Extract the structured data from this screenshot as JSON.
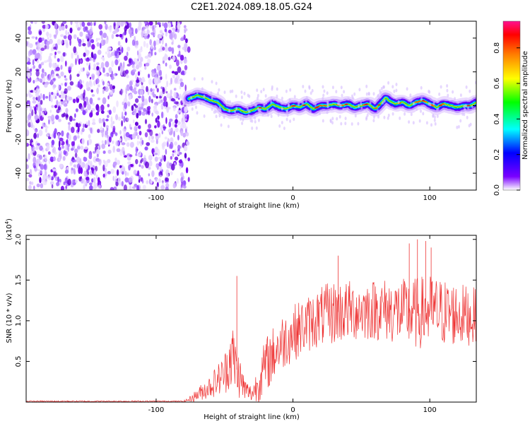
{
  "title": "C2E1.2024.089.18.05.G24",
  "chart_data": [
    {
      "type": "heatmap",
      "name": "spectrogram",
      "xlabel": "Height of straight line (km)",
      "ylabel": "Frequency (Hz)",
      "xlim": [
        -195,
        134
      ],
      "ylim": [
        -50,
        50
      ],
      "xticks": [
        -100,
        0,
        100
      ],
      "xtick_labels": [
        "-100",
        "0",
        "100"
      ],
      "yticks": [
        -40,
        -20,
        0,
        20,
        40
      ],
      "ytick_labels": [
        "-40",
        "-20",
        "0",
        "20",
        "40"
      ],
      "noise_region_x": [
        -195,
        -76
      ],
      "trace": {
        "x": [
          -76,
          -70,
          -65,
          -60,
          -55,
          -50,
          -45,
          -40,
          -35,
          -30,
          -25,
          -20,
          -15,
          -10,
          -5,
          0,
          5,
          10,
          15,
          20,
          25,
          30,
          35,
          40,
          45,
          50,
          55,
          60,
          65,
          68,
          70,
          75,
          80,
          85,
          90,
          95,
          100,
          105,
          110,
          115,
          120,
          125,
          130,
          134
        ],
        "frequency_hz": [
          4,
          6,
          5,
          3,
          2,
          -2,
          -3,
          -2,
          -4,
          -3,
          -1,
          -2,
          1,
          -1,
          -2,
          0,
          -1,
          1,
          -2,
          0,
          0,
          1,
          0,
          1,
          -1,
          0,
          1,
          -2,
          2,
          5,
          3,
          1,
          2,
          0,
          2,
          3,
          1,
          -1,
          1,
          0,
          -1,
          0,
          0,
          2
        ]
      },
      "colorbar": {
        "label": "Normalized spectral amplitude",
        "range": [
          0,
          0.95
        ],
        "ticks": [
          0.0,
          0.2,
          0.4,
          0.6,
          0.8
        ],
        "tick_labels": [
          "0.0",
          "0.2",
          "0.4",
          "0.6",
          "0.8"
        ],
        "colors": [
          "#ffffff",
          "#7a00ff",
          "#0000ff",
          "#00ffff",
          "#00ff00",
          "#ffff00",
          "#ff8000",
          "#ff0000",
          "#ff1090"
        ]
      }
    },
    {
      "type": "line",
      "name": "snr",
      "xlabel": "Height of straight line (km)",
      "ylabel": "SNR (10 * v/v)",
      "scale_label": "(x10",
      "scale_exponent": "4",
      "scale_close": ")",
      "xlim": [
        -195,
        134
      ],
      "ylim": [
        0,
        20500
      ],
      "xticks": [
        -100,
        0,
        100
      ],
      "xtick_labels": [
        "-100",
        "0",
        "100"
      ],
      "yticks": [
        5000,
        10000,
        15000,
        20000
      ],
      "ytick_labels": [
        "0.5",
        "1.0",
        "1.5",
        "2.0"
      ],
      "color": "#ee3333",
      "envelope": {
        "x": [
          -195,
          -80,
          -76,
          -70,
          -60,
          -50,
          -45,
          -40,
          -35,
          -30,
          -25,
          -20,
          -10,
          0,
          10,
          20,
          30,
          40,
          50,
          60,
          70,
          80,
          90,
          100,
          110,
          120,
          134
        ],
        "mean": [
          100,
          100,
          300,
          900,
          2000,
          3500,
          6000,
          3500,
          1500,
          1000,
          2500,
          4500,
          7000,
          8500,
          9500,
          10500,
          11000,
          11200,
          11300,
          11400,
          11300,
          11000,
          10900,
          11200,
          11000,
          10800,
          10500
        ],
        "spread": [
          80,
          80,
          300,
          800,
          1500,
          2500,
          4500,
          3000,
          1500,
          1000,
          2500,
          3500,
          3500,
          3500,
          3500,
          3700,
          4000,
          3800,
          3800,
          3800,
          4000,
          4200,
          4500,
          4500,
          4200,
          4000,
          3500
        ]
      },
      "peaks": [
        {
          "x": -41,
          "y": 15500
        },
        {
          "x": 33,
          "y": 18000
        },
        {
          "x": 85,
          "y": 19500
        },
        {
          "x": 91,
          "y": 20000
        },
        {
          "x": 97,
          "y": 19800
        },
        {
          "x": 101,
          "y": 19000
        }
      ]
    }
  ]
}
